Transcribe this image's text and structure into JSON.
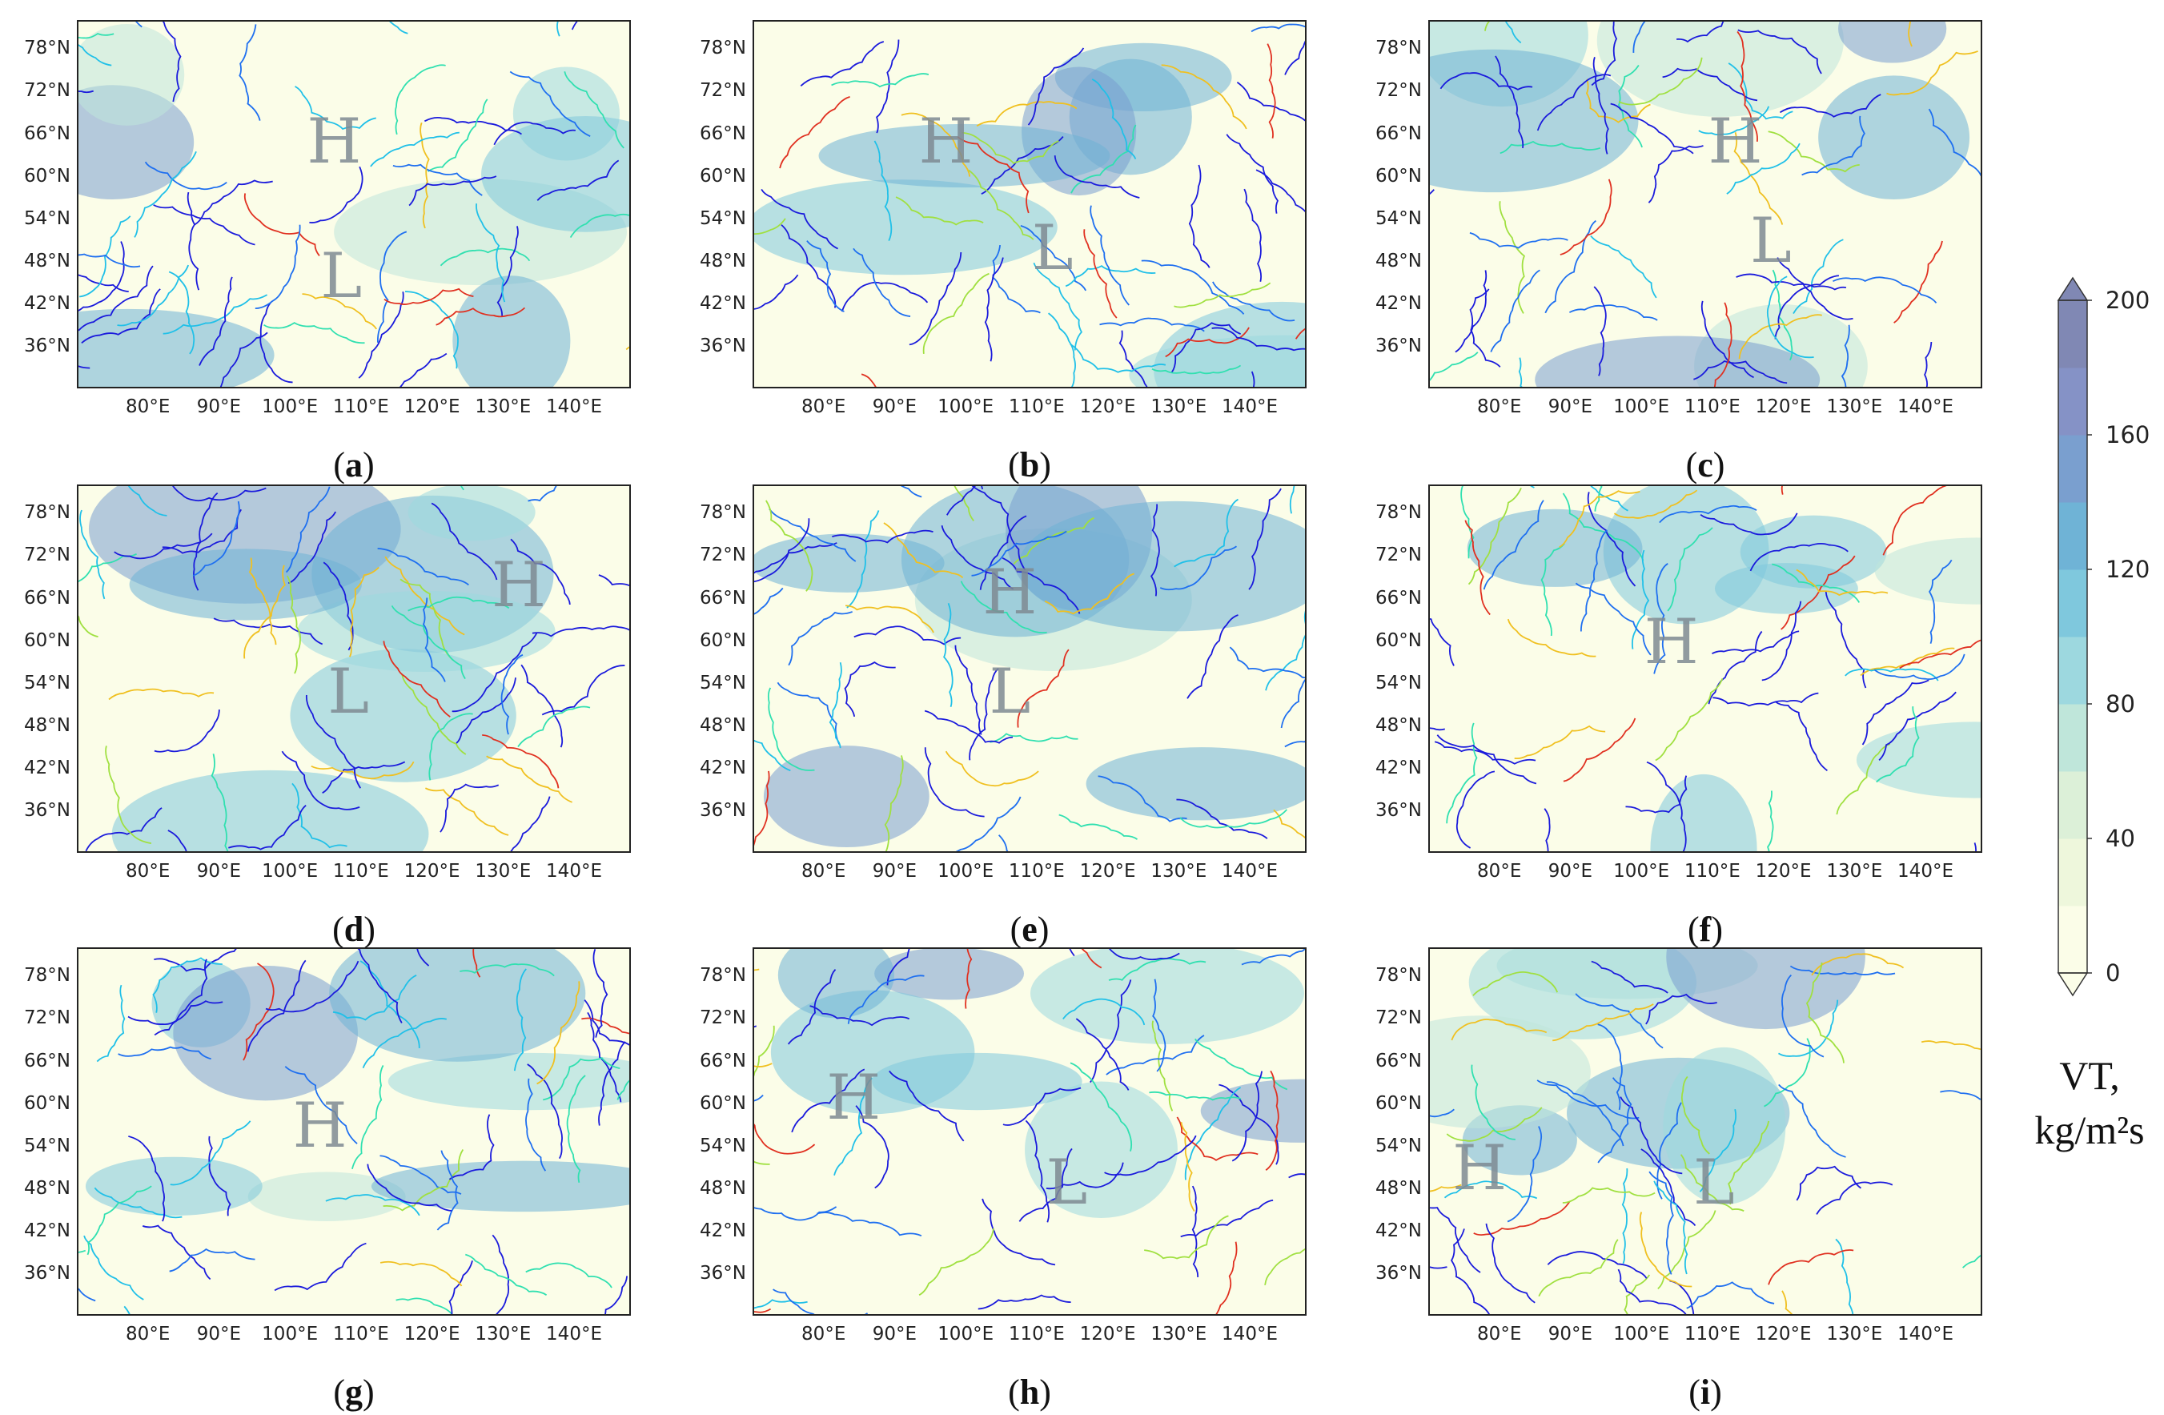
{
  "panels": [
    {
      "caption_letter": "a",
      "centers": [
        {
          "text": "H",
          "lon": 106,
          "lat": 65
        },
        {
          "text": "L",
          "lon": 107,
          "lat": 46
        }
      ]
    },
    {
      "caption_letter": "b",
      "centers": [
        {
          "text": "H",
          "lon": 97,
          "lat": 65
        },
        {
          "text": "L",
          "lon": 112,
          "lat": 50
        }
      ]
    },
    {
      "caption_letter": "c",
      "centers": [
        {
          "text": "H",
          "lon": 113,
          "lat": 65
        },
        {
          "text": "L",
          "lon": 118,
          "lat": 51
        }
      ]
    },
    {
      "caption_letter": "d",
      "centers": [
        {
          "text": "H",
          "lon": 132,
          "lat": 68
        },
        {
          "text": "L",
          "lon": 108,
          "lat": 53
        }
      ]
    },
    {
      "caption_letter": "e",
      "centers": [
        {
          "text": "H",
          "lon": 106,
          "lat": 67
        },
        {
          "text": "L",
          "lon": 106,
          "lat": 53
        }
      ]
    },
    {
      "caption_letter": "f",
      "centers": [
        {
          "text": "H",
          "lon": 104,
          "lat": 60
        }
      ]
    },
    {
      "caption_letter": "g",
      "centers": [
        {
          "text": "H",
          "lon": 104,
          "lat": 57
        }
      ]
    },
    {
      "caption_letter": "h",
      "centers": [
        {
          "text": "H",
          "lon": 84,
          "lat": 61
        },
        {
          "text": "L",
          "lon": 114,
          "lat": 49
        }
      ]
    },
    {
      "caption_letter": "i",
      "centers": [
        {
          "text": "H",
          "lon": 77,
          "lat": 51
        },
        {
          "text": "L",
          "lon": 110,
          "lat": 49
        }
      ]
    }
  ],
  "axes": {
    "y_ticks": [
      "78°N",
      "72°N",
      "66°N",
      "60°N",
      "54°N",
      "48°N",
      "42°N",
      "36°N"
    ],
    "y_values": [
      78,
      72,
      66,
      60,
      54,
      48,
      42,
      36
    ],
    "x_ticks": [
      "80°E",
      "90°E",
      "100°E",
      "110°E",
      "120°E",
      "130°E",
      "140°E"
    ],
    "x_values": [
      80,
      90,
      100,
      110,
      120,
      130,
      140
    ],
    "lon_range": [
      70,
      148
    ],
    "lat_range": [
      30,
      82
    ]
  },
  "colorbar": {
    "ticks": [
      "0",
      "40",
      "80",
      "120",
      "160",
      "200"
    ],
    "values": [
      0,
      40,
      80,
      120,
      160,
      200
    ],
    "title_line1": "VT,",
    "title_line2": "kg/m²s",
    "colors": [
      "#fbfde8",
      "#eef7dc",
      "#dcf0d8",
      "#bfe6da",
      "#9dd8df",
      "#7fc8dd",
      "#6fb3d6",
      "#7a9fcf",
      "#8592c6",
      "#8088b4"
    ]
  },
  "streamline_colors": [
    "#1a1adc",
    "#1e6ff0",
    "#20c0e8",
    "#30e0b0",
    "#a0e040",
    "#f0c020",
    "#e03020"
  ]
}
